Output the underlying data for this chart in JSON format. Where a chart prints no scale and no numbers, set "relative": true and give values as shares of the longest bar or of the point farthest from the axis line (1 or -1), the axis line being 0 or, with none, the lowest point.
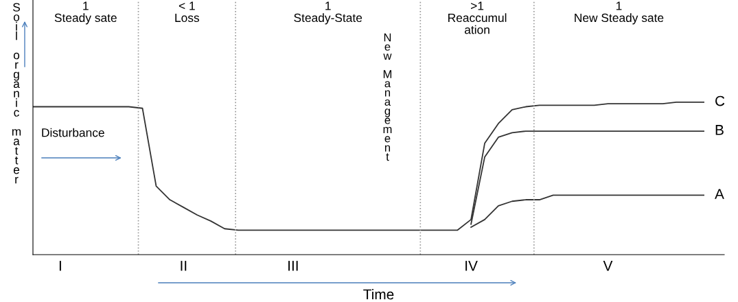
{
  "chart_data": {
    "type": "line",
    "relative": true,
    "xlabel": "Time",
    "ylabel": "Soil organic matter",
    "categories": [
      null,
      null,
      "I",
      null,
      null,
      null,
      null,
      null,
      null,
      null,
      null,
      "II",
      null,
      null,
      null,
      null,
      null,
      null,
      null,
      "III",
      null,
      null,
      null,
      null,
      null,
      null,
      null,
      null,
      null,
      null,
      null,
      null,
      "IV",
      null,
      null,
      null,
      null,
      null,
      null,
      null,
      null,
      null,
      "V",
      null,
      null,
      null,
      null,
      null,
      null,
      null
    ],
    "series": [
      {
        "name": "C",
        "color": "#333333",
        "values": [
          0.97,
          0.97,
          0.97,
          0.97,
          0.97,
          0.97,
          0.97,
          0.97,
          0.96,
          0.45,
          0.36,
          0.31,
          0.26,
          0.22,
          0.17,
          0.16,
          0.16,
          0.16,
          0.16,
          0.16,
          0.16,
          0.16,
          0.16,
          0.16,
          0.16,
          0.16,
          0.16,
          0.16,
          0.16,
          0.16,
          0.16,
          0.16,
          0.23,
          0.73,
          0.86,
          0.95,
          0.97,
          0.98,
          0.98,
          0.98,
          0.98,
          0.98,
          0.99,
          0.99,
          0.99,
          0.99,
          0.99,
          1.0,
          1.0,
          1.0
        ]
      },
      {
        "name": "B",
        "color": "#333333",
        "values": [
          null,
          null,
          null,
          null,
          null,
          null,
          null,
          null,
          null,
          null,
          null,
          null,
          null,
          null,
          null,
          null,
          null,
          null,
          null,
          null,
          null,
          null,
          null,
          null,
          null,
          null,
          null,
          null,
          null,
          null,
          null,
          null,
          0.2,
          0.64,
          0.77,
          0.8,
          0.81,
          0.81,
          0.81,
          0.81,
          0.81,
          0.81,
          0.81,
          0.81,
          0.81,
          0.81,
          0.81,
          0.81,
          0.81,
          0.81
        ]
      },
      {
        "name": "A",
        "color": "#333333",
        "values": [
          null,
          null,
          null,
          null,
          null,
          null,
          null,
          null,
          null,
          null,
          null,
          null,
          null,
          null,
          null,
          null,
          null,
          null,
          null,
          null,
          null,
          null,
          null,
          null,
          null,
          null,
          null,
          null,
          null,
          null,
          null,
          null,
          0.18,
          0.23,
          0.32,
          0.35,
          0.36,
          0.36,
          0.39,
          0.39,
          0.39,
          0.39,
          0.39,
          0.39,
          0.39,
          0.39,
          0.39,
          0.39,
          0.39,
          0.39
        ]
      }
    ],
    "annotations": [
      "1\nSteady sate",
      "< 1\nLoss",
      "1\nSteady-State",
      ">1\nReaccumul\nation",
      "1\nNew Steady sate",
      "New Management",
      "Disturbance"
    ],
    "grid": false,
    "legend": false,
    "marker": "none",
    "line_style": "solid"
  }
}
